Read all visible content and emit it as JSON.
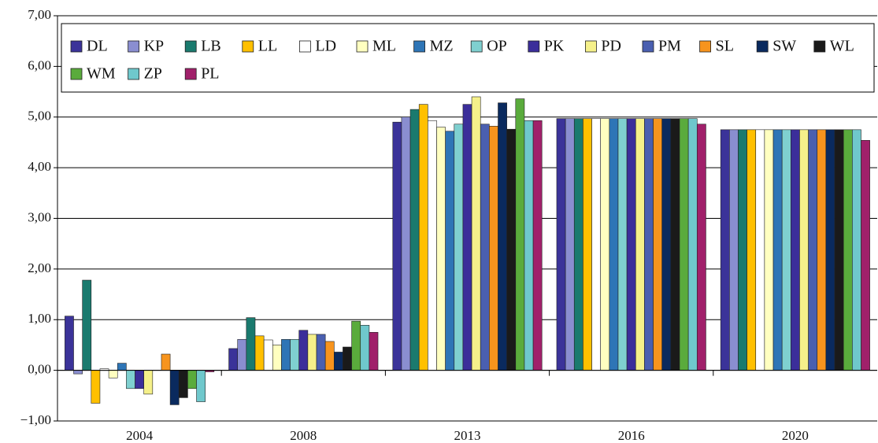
{
  "chart_data": {
    "type": "bar",
    "categories": [
      "2004",
      "2008",
      "2013",
      "2016",
      "2020"
    ],
    "series": [
      {
        "name": "DL",
        "color": "#3b3399",
        "values": [
          1.07,
          0.43,
          4.9,
          4.97,
          4.75
        ]
      },
      {
        "name": "KP",
        "color": "#8a8ed0",
        "values": [
          -0.07,
          0.61,
          5.0,
          4.97,
          4.75
        ]
      },
      {
        "name": "LB",
        "color": "#1a7a6e",
        "values": [
          1.78,
          1.04,
          5.15,
          4.97,
          4.75
        ]
      },
      {
        "name": "LL",
        "color": "#ffc000",
        "values": [
          -0.65,
          0.68,
          5.25,
          4.97,
          4.75
        ]
      },
      {
        "name": "LD",
        "color": "#ffffff",
        "values": [
          0.03,
          0.6,
          4.93,
          4.97,
          4.75
        ]
      },
      {
        "name": "ML",
        "color": "#ffffc0",
        "values": [
          -0.15,
          0.5,
          4.8,
          4.97,
          4.75
        ]
      },
      {
        "name": "MZ",
        "color": "#2e75b6",
        "values": [
          0.14,
          0.61,
          4.72,
          4.97,
          4.75
        ]
      },
      {
        "name": "OP",
        "color": "#7fd0d0",
        "values": [
          -0.36,
          0.61,
          4.86,
          4.97,
          4.75
        ]
      },
      {
        "name": "PK",
        "color": "#3b2e9a",
        "values": [
          -0.36,
          0.79,
          5.25,
          4.97,
          4.75
        ]
      },
      {
        "name": "PD",
        "color": "#f5f08a",
        "values": [
          -0.47,
          0.71,
          5.4,
          4.97,
          4.75
        ]
      },
      {
        "name": "PM",
        "color": "#4a5fb0",
        "values": [
          0,
          0.71,
          4.86,
          4.97,
          4.75
        ]
      },
      {
        "name": "SL",
        "color": "#f7941d",
        "values": [
          0.32,
          0.57,
          4.82,
          4.97,
          4.75
        ]
      },
      {
        "name": "SW",
        "color": "#0a2a5e",
        "values": [
          -0.68,
          0.36,
          5.28,
          4.97,
          4.75
        ]
      },
      {
        "name": "WL",
        "color": "#1a1a1a",
        "values": [
          -0.54,
          0.46,
          4.76,
          4.97,
          4.75
        ]
      },
      {
        "name": "WM",
        "color": "#5aab3c",
        "values": [
          -0.36,
          0.97,
          5.36,
          4.97,
          4.75
        ]
      },
      {
        "name": "ZP",
        "color": "#6fc8cc",
        "values": [
          -0.62,
          0.89,
          4.93,
          4.97,
          4.75
        ]
      },
      {
        "name": "PL",
        "color": "#a0206a",
        "values": [
          -0.03,
          0.75,
          4.93,
          4.86,
          4.54
        ]
      }
    ],
    "ylim": [
      -1,
      7
    ],
    "yticks": [
      {
        "value": -1,
        "label": "−1,00"
      },
      {
        "value": 0,
        "label": "0,00"
      },
      {
        "value": 1,
        "label": "1,00"
      },
      {
        "value": 2,
        "label": "2,00"
      },
      {
        "value": 3,
        "label": "3,00"
      },
      {
        "value": 4,
        "label": "4,00"
      },
      {
        "value": 5,
        "label": "5,00"
      },
      {
        "value": 6,
        "label": "6,00"
      },
      {
        "value": 7,
        "label": "7,00"
      }
    ],
    "grid": true
  }
}
